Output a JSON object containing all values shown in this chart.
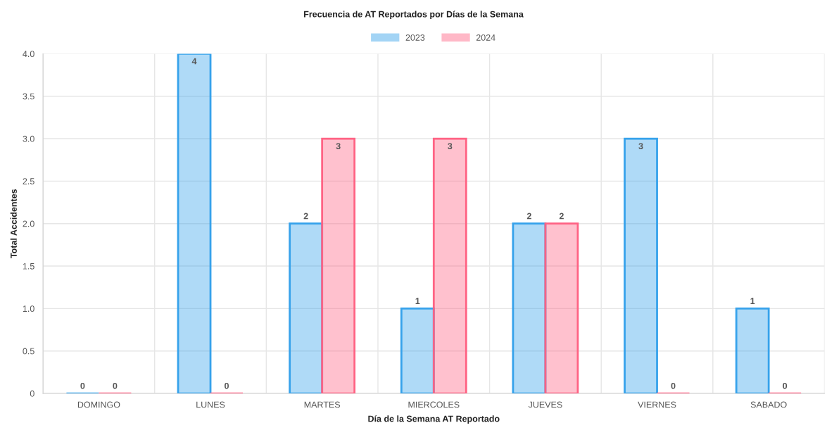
{
  "chart_data": {
    "type": "bar",
    "title": "Frecuencia de AT Reportados por Días de la Semana",
    "xlabel": "Día de la Semana AT Reportado",
    "ylabel": "Total Accidentes",
    "categories": [
      "DOMINGO",
      "LUNES",
      "MARTES",
      "MIERCOLES",
      "JUEVES",
      "VIERNES",
      "SABADO"
    ],
    "series": [
      {
        "name": "2023",
        "color": "#36a2eb",
        "values": [
          0,
          4,
          2,
          1,
          2,
          3,
          1
        ]
      },
      {
        "name": "2024",
        "color": "#ff6384",
        "values": [
          0,
          0,
          3,
          3,
          2,
          0,
          0
        ]
      }
    ],
    "ylim": [
      0,
      4
    ],
    "yticks": [
      0,
      0.5,
      {
        "value": 1,
        "label": "1.0"
      },
      1.5,
      {
        "value": 2,
        "label": "2.0"
      },
      2.5,
      {
        "value": 3,
        "label": "3.0"
      },
      3.5,
      {
        "value": 4,
        "label": "4.0"
      }
    ],
    "data_labels": true,
    "grid": true,
    "legend": "top"
  }
}
